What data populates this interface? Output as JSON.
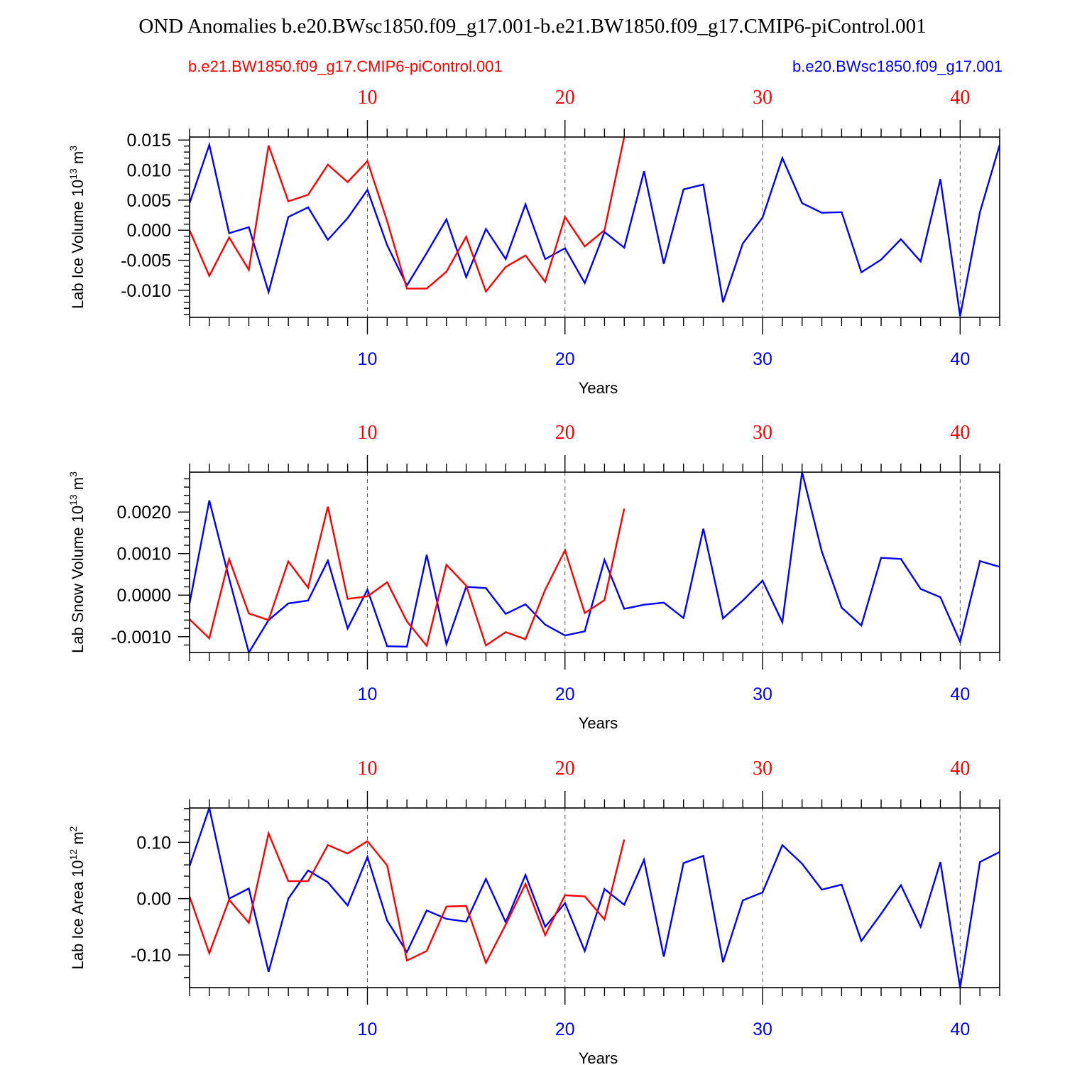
{
  "title": "OND Anomalies b.e20.BWsc1850.f09_g17.001-b.e21.BW1850.f09_g17.CMIP6-piControl.001",
  "legend": {
    "red_label": "b.e21.BW1850.f09_g17.CMIP6-piControl.001",
    "blue_label": "b.e20.BWsc1850.f09_g17.001"
  },
  "colors": {
    "red": "#ff0000",
    "blue": "#0000ff",
    "text": "#000000"
  },
  "chart_data": [
    {
      "type": "line",
      "ylabel": "Lab Ice Volume 10",
      "ylabel_exp": "13",
      "ylabel_unit": " m",
      "ylabel_unit_exp": "3",
      "xlabel": "Years",
      "xlim": [
        1,
        42
      ],
      "ylim": [
        -0.0145,
        0.0155
      ],
      "xticks": [
        10,
        20,
        30,
        40
      ],
      "xtick_labels": [
        "10",
        "20",
        "30",
        "40"
      ],
      "yticks": [
        0.015,
        0.01,
        0.005,
        0.0,
        -0.005,
        -0.01
      ],
      "ytick_labels": [
        "0.015",
        "0.010",
        "0.005",
        "0.000",
        "-0.005",
        "-0.010"
      ],
      "series": [
        {
          "name": "b.e20.BWsc1850.f09_g17.001",
          "color": "#0000ff",
          "x": [
            1,
            2,
            3,
            4,
            5,
            6,
            7,
            8,
            9,
            10,
            11,
            12,
            13,
            14,
            15,
            16,
            17,
            18,
            19,
            20,
            21,
            22,
            23,
            24,
            25,
            26,
            27,
            28,
            29,
            30,
            31,
            32,
            33,
            34,
            35,
            36,
            37,
            38,
            39,
            40,
            41,
            42
          ],
          "values": [
            0.0045,
            0.0142,
            -0.0005,
            0.0005,
            -0.0103,
            0.0022,
            0.0038,
            -0.0016,
            0.002,
            0.0067,
            -0.0025,
            -0.0092,
            -0.0038,
            0.0018,
            -0.0078,
            0.0002,
            -0.0048,
            0.0043,
            -0.0048,
            -0.003,
            -0.0088,
            -0.0003,
            -0.0029,
            0.0098,
            -0.0056,
            0.0068,
            0.0076,
            -0.012,
            -0.0022,
            0.0021,
            0.012,
            0.0045,
            0.0029,
            0.003,
            -0.007,
            -0.0049,
            -0.0015,
            -0.0052,
            0.0085,
            -0.0143,
            0.003,
            0.0142
          ]
        },
        {
          "name": "b.e21.BW1850.f09_g17.CMIP6-piControl.001",
          "color": "#ff0000",
          "x": [
            1,
            2,
            3,
            4,
            5,
            6,
            7,
            8,
            9,
            10,
            11,
            12,
            13,
            14,
            15,
            16,
            17,
            18,
            19,
            20,
            21,
            22,
            23
          ],
          "values": [
            0.0,
            -0.0076,
            -0.0012,
            -0.0066,
            0.0141,
            0.0048,
            0.0059,
            0.0109,
            0.008,
            0.0115,
            0.0015,
            -0.0097,
            -0.0097,
            -0.0069,
            -0.0011,
            -0.0102,
            -0.0061,
            -0.0042,
            -0.0086,
            0.0022,
            -0.0027,
            0.0,
            0.0155
          ]
        }
      ]
    },
    {
      "type": "line",
      "ylabel": "Lab Snow Volume 10",
      "ylabel_exp": "13",
      "ylabel_unit": " m",
      "ylabel_unit_exp": "3",
      "xlabel": "Years",
      "xlim": [
        1,
        42
      ],
      "ylim": [
        -0.00138,
        0.00296
      ],
      "xticks": [
        10,
        20,
        30,
        40
      ],
      "xtick_labels": [
        "10",
        "20",
        "30",
        "40"
      ],
      "yticks": [
        0.002,
        0.001,
        0.0,
        -0.001
      ],
      "ytick_labels": [
        "0.0020",
        "0.0010",
        "0.0000",
        "-0.0010"
      ],
      "series": [
        {
          "name": "b.e20.BWsc1850.f09_g17.001",
          "color": "#0000ff",
          "x": [
            1,
            2,
            3,
            4,
            5,
            6,
            7,
            8,
            9,
            10,
            11,
            12,
            13,
            14,
            15,
            16,
            17,
            18,
            19,
            20,
            21,
            22,
            23,
            24,
            25,
            26,
            27,
            28,
            29,
            30,
            31,
            32,
            33,
            34,
            35,
            36,
            37,
            38,
            39,
            40,
            41,
            42
          ],
          "values": [
            -0.0002,
            0.00228,
            0.0004,
            -0.00138,
            -0.0006,
            -0.0002,
            -0.00013,
            0.00083,
            -0.0008,
            0.00013,
            -0.00123,
            -0.00124,
            0.00097,
            -0.00118,
            0.0002,
            0.00017,
            -0.00045,
            -0.00022,
            -0.00071,
            -0.00097,
            -0.00087,
            0.00085,
            -0.00033,
            -0.00023,
            -0.00018,
            -0.00055,
            0.0016,
            -0.00056,
            -0.00013,
            0.00035,
            -0.00065,
            0.00296,
            0.00105,
            -0.0003,
            -0.00073,
            0.0009,
            0.00087,
            0.00015,
            -5e-05,
            -0.00112,
            0.00082,
            0.00068
          ]
        },
        {
          "name": "b.e21.BW1850.f09_g17.CMIP6-piControl.001",
          "color": "#ff0000",
          "x": [
            1,
            2,
            3,
            4,
            5,
            6,
            7,
            8,
            9,
            10,
            11,
            12,
            13,
            14,
            15,
            16,
            17,
            18,
            19,
            20,
            21,
            22,
            23
          ],
          "values": [
            -0.00058,
            -0.00104,
            0.00087,
            -0.00044,
            -0.0006,
            0.00081,
            0.00018,
            0.00213,
            -9e-05,
            -3e-05,
            0.00031,
            -0.00063,
            -0.00122,
            0.00073,
            0.00023,
            -0.00121,
            -0.00089,
            -0.00106,
            0.00013,
            0.00108,
            -0.00043,
            -0.00012,
            0.00208
          ]
        }
      ]
    },
    {
      "type": "line",
      "ylabel": "Lab Ice Area 10",
      "ylabel_exp": "12",
      "ylabel_unit": " m",
      "ylabel_unit_exp": "2",
      "xlabel": "Years",
      "xlim": [
        1,
        42
      ],
      "ylim": [
        -0.158,
        0.161
      ],
      "xticks": [
        10,
        20,
        30,
        40
      ],
      "xtick_labels": [
        "10",
        "20",
        "30",
        "40"
      ],
      "yticks": [
        0.1,
        0.0,
        -0.1
      ],
      "ytick_labels": [
        "0.10",
        "0.00",
        "-0.10"
      ],
      "series": [
        {
          "name": "b.e20.BWsc1850.f09_g17.001",
          "color": "#0000ff",
          "x": [
            1,
            2,
            3,
            4,
            5,
            6,
            7,
            8,
            9,
            10,
            11,
            12,
            13,
            14,
            15,
            16,
            17,
            18,
            19,
            20,
            21,
            22,
            23,
            24,
            25,
            26,
            27,
            28,
            29,
            30,
            31,
            32,
            33,
            34,
            35,
            36,
            37,
            38,
            39,
            40,
            41,
            42
          ],
          "values": [
            0.058,
            0.161,
            0.0,
            0.018,
            -0.13,
            0.0,
            0.05,
            0.029,
            -0.012,
            0.074,
            -0.039,
            -0.095,
            -0.021,
            -0.036,
            -0.041,
            0.035,
            -0.042,
            0.042,
            -0.05,
            -0.008,
            -0.093,
            0.017,
            -0.011,
            0.069,
            -0.103,
            0.063,
            0.076,
            -0.113,
            -0.003,
            0.011,
            0.095,
            0.062,
            0.016,
            0.025,
            -0.075,
            -0.027,
            0.024,
            -0.05,
            0.065,
            -0.158,
            0.065,
            0.083
          ]
        },
        {
          "name": "b.e21.BW1850.f09_g17.CMIP6-piControl.001",
          "color": "#ff0000",
          "x": [
            1,
            2,
            3,
            4,
            5,
            6,
            7,
            8,
            9,
            10,
            11,
            12,
            13,
            14,
            15,
            16,
            17,
            18,
            19,
            20,
            21,
            22,
            23
          ],
          "values": [
            0.004,
            -0.097,
            -0.002,
            -0.043,
            0.116,
            0.031,
            0.031,
            0.095,
            0.08,
            0.102,
            0.059,
            -0.11,
            -0.093,
            -0.014,
            -0.013,
            -0.114,
            -0.046,
            0.026,
            -0.065,
            0.006,
            0.004,
            -0.037,
            0.105
          ]
        }
      ]
    }
  ]
}
